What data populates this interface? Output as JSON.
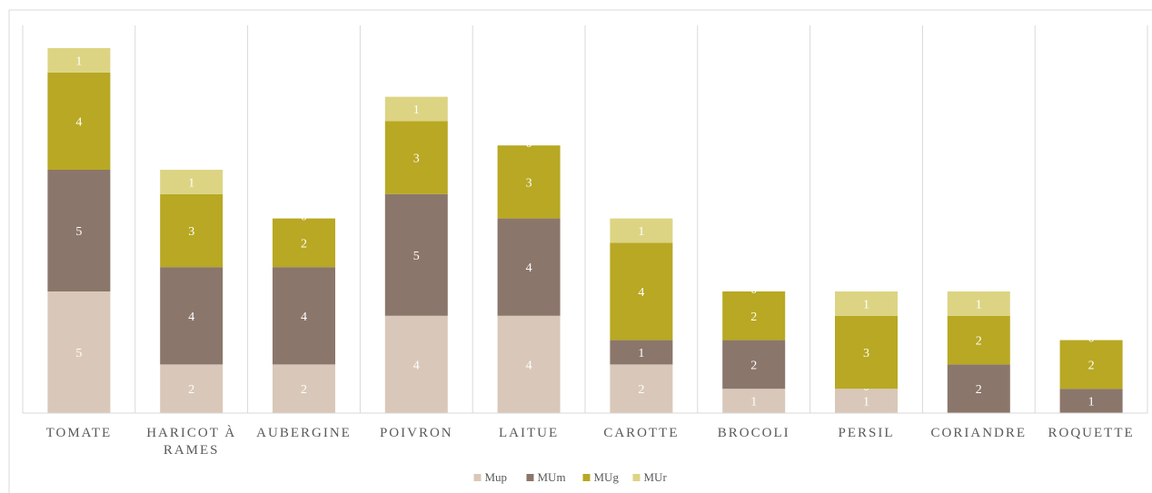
{
  "chart_data": {
    "type": "bar",
    "stacked": true,
    "categories": [
      [
        "TOMATE"
      ],
      [
        "HARICOT À",
        "RAMES"
      ],
      [
        "AUBERGINE"
      ],
      [
        "POIVRON"
      ],
      [
        "LAITUE"
      ],
      [
        "CAROTTE"
      ],
      [
        "BROCOLI"
      ],
      [
        "PERSIL"
      ],
      [
        "CORIANDRE"
      ],
      [
        "ROQUETTE"
      ]
    ],
    "series": [
      {
        "name": "Mup",
        "color": "#d9c8b9",
        "values": [
          5,
          2,
          2,
          4,
          4,
          2,
          1,
          1,
          0,
          0
        ]
      },
      {
        "name": "MUm",
        "color": "#8b766b",
        "values": [
          5,
          4,
          4,
          5,
          4,
          1,
          2,
          0,
          2,
          1
        ]
      },
      {
        "name": "MUg",
        "color": "#b8a823",
        "values": [
          4,
          3,
          2,
          3,
          3,
          4,
          2,
          3,
          2,
          2
        ]
      },
      {
        "name": "MUr",
        "color": "#dcd483",
        "values": [
          1,
          1,
          0,
          1,
          0,
          1,
          0,
          1,
          1,
          0
        ]
      }
    ],
    "ylim": [
      0,
      15
    ],
    "grid": "vertical-separators",
    "legend": "bottom"
  }
}
